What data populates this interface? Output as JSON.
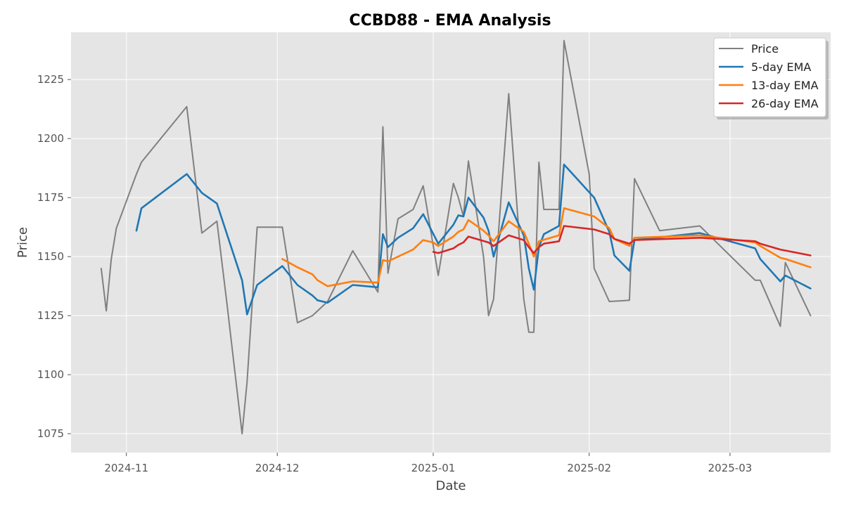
{
  "chart_data": {
    "type": "line",
    "title": "CCBD88 - EMA Analysis",
    "xlabel": "Date",
    "ylabel": "Price",
    "x_type": "date",
    "xlim": [
      "2024-10-21",
      "2025-03-21"
    ],
    "ylim": [
      1067,
      1245
    ],
    "x_ticks": [
      {
        "date": "2024-11-01",
        "label": "2024-11"
      },
      {
        "date": "2024-12-01",
        "label": "2024-12"
      },
      {
        "date": "2025-01-01",
        "label": "2025-01"
      },
      {
        "date": "2025-02-01",
        "label": "2025-02"
      },
      {
        "date": "2025-03-01",
        "label": "2025-03"
      }
    ],
    "y_ticks": [
      1075,
      1100,
      1125,
      1150,
      1175,
      1200,
      1225
    ],
    "grid": true,
    "legend_position": "top-right",
    "background": "#e5e5e5",
    "series": [
      {
        "name": "Price",
        "color": "#808080",
        "points": [
          [
            "2024-10-27",
            1145
          ],
          [
            "2024-10-28",
            1127
          ],
          [
            "2024-10-29",
            1149
          ],
          [
            "2024-10-30",
            1162
          ],
          [
            "2024-11-03",
            1185
          ],
          [
            "2024-11-04",
            1190
          ],
          [
            "2024-11-13",
            1213.5
          ],
          [
            "2024-11-16",
            1160
          ],
          [
            "2024-11-19",
            1165
          ],
          [
            "2024-11-21",
            1130
          ],
          [
            "2024-11-24",
            1075
          ],
          [
            "2024-11-25",
            1097
          ],
          [
            "2024-11-27",
            1162.5
          ],
          [
            "2024-12-02",
            1162.5
          ],
          [
            "2024-12-05",
            1122
          ],
          [
            "2024-12-08",
            1125
          ],
          [
            "2024-12-09",
            1127
          ],
          [
            "2024-12-11",
            1131
          ],
          [
            "2024-12-16",
            1152.5
          ],
          [
            "2024-12-21",
            1135
          ],
          [
            "2024-12-22",
            1205
          ],
          [
            "2024-12-23",
            1143
          ],
          [
            "2024-12-25",
            1166
          ],
          [
            "2024-12-28",
            1170
          ],
          [
            "2024-12-30",
            1180
          ],
          [
            "2025-01-02",
            1142
          ],
          [
            "2025-01-05",
            1181
          ],
          [
            "2025-01-06",
            1175
          ],
          [
            "2025-01-07",
            1167
          ],
          [
            "2025-01-08",
            1190.5
          ],
          [
            "2025-01-11",
            1150
          ],
          [
            "2025-01-12",
            1125
          ],
          [
            "2025-01-13",
            1132
          ],
          [
            "2025-01-16",
            1219
          ],
          [
            "2025-01-19",
            1132
          ],
          [
            "2025-01-20",
            1118
          ],
          [
            "2025-01-21",
            1118
          ],
          [
            "2025-01-22",
            1190
          ],
          [
            "2025-01-23",
            1170
          ],
          [
            "2025-01-26",
            1170
          ],
          [
            "2025-01-27",
            1241.5
          ],
          [
            "2025-02-01",
            1185
          ],
          [
            "2025-02-02",
            1145
          ],
          [
            "2025-02-05",
            1131
          ],
          [
            "2025-02-09",
            1131.5
          ],
          [
            "2025-02-10",
            1183
          ],
          [
            "2025-02-15",
            1161
          ],
          [
            "2025-02-23",
            1163
          ],
          [
            "2025-03-06",
            1140
          ],
          [
            "2025-03-07",
            1140
          ],
          [
            "2025-03-11",
            1120.5
          ],
          [
            "2025-03-12",
            1147.5
          ],
          [
            "2025-03-17",
            1125
          ]
        ]
      },
      {
        "name": "5-day EMA",
        "color": "#1f77b4",
        "points": [
          [
            "2024-11-03",
            1161
          ],
          [
            "2024-11-04",
            1170.5
          ],
          [
            "2024-11-13",
            1185
          ],
          [
            "2024-11-16",
            1177
          ],
          [
            "2024-11-19",
            1172.5
          ],
          [
            "2024-11-24",
            1140
          ],
          [
            "2024-11-25",
            1125.5
          ],
          [
            "2024-11-27",
            1138
          ],
          [
            "2024-12-02",
            1146
          ],
          [
            "2024-12-05",
            1138
          ],
          [
            "2024-12-08",
            1133.5
          ],
          [
            "2024-12-09",
            1131.5
          ],
          [
            "2024-12-11",
            1130.5
          ],
          [
            "2024-12-16",
            1138
          ],
          [
            "2024-12-21",
            1137
          ],
          [
            "2024-12-22",
            1159.5
          ],
          [
            "2024-12-23",
            1154
          ],
          [
            "2024-12-25",
            1158
          ],
          [
            "2024-12-28",
            1162
          ],
          [
            "2024-12-30",
            1168
          ],
          [
            "2025-01-02",
            1155.5
          ],
          [
            "2025-01-05",
            1163.5
          ],
          [
            "2025-01-06",
            1167.5
          ],
          [
            "2025-01-07",
            1167
          ],
          [
            "2025-01-08",
            1175
          ],
          [
            "2025-01-11",
            1166.5
          ],
          [
            "2025-01-12",
            1161
          ],
          [
            "2025-01-13",
            1150
          ],
          [
            "2025-01-16",
            1173
          ],
          [
            "2025-01-19",
            1159
          ],
          [
            "2025-01-20",
            1145
          ],
          [
            "2025-01-21",
            1136
          ],
          [
            "2025-01-22",
            1154
          ],
          [
            "2025-01-23",
            1159.5
          ],
          [
            "2025-01-26",
            1163
          ],
          [
            "2025-01-27",
            1189
          ],
          [
            "2025-02-02",
            1175
          ],
          [
            "2025-02-05",
            1160.5
          ],
          [
            "2025-02-06",
            1150.5
          ],
          [
            "2025-02-09",
            1144
          ],
          [
            "2025-02-10",
            1157
          ],
          [
            "2025-02-23",
            1160
          ],
          [
            "2025-03-06",
            1153.5
          ],
          [
            "2025-03-07",
            1149
          ],
          [
            "2025-03-11",
            1139.5
          ],
          [
            "2025-03-12",
            1142
          ],
          [
            "2025-03-17",
            1136.5
          ]
        ]
      },
      {
        "name": "13-day EMA",
        "color": "#ff7f0e",
        "points": [
          [
            "2024-12-02",
            1149
          ],
          [
            "2024-12-05",
            1145.5
          ],
          [
            "2024-12-08",
            1142.5
          ],
          [
            "2024-12-09",
            1140
          ],
          [
            "2024-12-11",
            1137.5
          ],
          [
            "2024-12-16",
            1139.5
          ],
          [
            "2024-12-21",
            1139
          ],
          [
            "2024-12-22",
            1148.5
          ],
          [
            "2024-12-23",
            1148
          ],
          [
            "2024-12-25",
            1150
          ],
          [
            "2024-12-28",
            1153
          ],
          [
            "2024-12-30",
            1157
          ],
          [
            "2025-01-01",
            1156
          ],
          [
            "2025-01-02",
            1154.5
          ],
          [
            "2025-01-05",
            1158.5
          ],
          [
            "2025-01-06",
            1160.5
          ],
          [
            "2025-01-07",
            1161.5
          ],
          [
            "2025-01-08",
            1165.5
          ],
          [
            "2025-01-11",
            1161
          ],
          [
            "2025-01-12",
            1159
          ],
          [
            "2025-01-13",
            1156.5
          ],
          [
            "2025-01-16",
            1165
          ],
          [
            "2025-01-19",
            1160.5
          ],
          [
            "2025-01-20",
            1155.5
          ],
          [
            "2025-01-21",
            1150
          ],
          [
            "2025-01-22",
            1156.5
          ],
          [
            "2025-01-26",
            1159
          ],
          [
            "2025-01-27",
            1170.5
          ],
          [
            "2025-02-02",
            1167
          ],
          [
            "2025-02-05",
            1162
          ],
          [
            "2025-02-06",
            1157.5
          ],
          [
            "2025-02-09",
            1154.5
          ],
          [
            "2025-02-10",
            1158
          ],
          [
            "2025-02-23",
            1159
          ],
          [
            "2025-03-06",
            1156
          ],
          [
            "2025-03-07",
            1154.5
          ],
          [
            "2025-03-11",
            1149.5
          ],
          [
            "2025-03-12",
            1149
          ],
          [
            "2025-03-17",
            1145.5
          ]
        ]
      },
      {
        "name": "26-day EMA",
        "color": "#d62728",
        "points": [
          [
            "2025-01-01",
            1152
          ],
          [
            "2025-01-02",
            1151.5
          ],
          [
            "2025-01-05",
            1153.5
          ],
          [
            "2025-01-06",
            1155
          ],
          [
            "2025-01-07",
            1156
          ],
          [
            "2025-01-08",
            1158.5
          ],
          [
            "2025-01-12",
            1156
          ],
          [
            "2025-01-13",
            1154.5
          ],
          [
            "2025-01-16",
            1159
          ],
          [
            "2025-01-19",
            1157
          ],
          [
            "2025-01-20",
            1154
          ],
          [
            "2025-01-21",
            1151.5
          ],
          [
            "2025-01-22",
            1154
          ],
          [
            "2025-01-23",
            1155.5
          ],
          [
            "2025-01-26",
            1156.5
          ],
          [
            "2025-01-27",
            1163
          ],
          [
            "2025-02-02",
            1161.5
          ],
          [
            "2025-02-05",
            1159.5
          ],
          [
            "2025-02-06",
            1157.5
          ],
          [
            "2025-02-09",
            1155.5
          ],
          [
            "2025-02-10",
            1157
          ],
          [
            "2025-02-23",
            1158
          ],
          [
            "2025-03-06",
            1156.5
          ],
          [
            "2025-03-07",
            1155.5
          ],
          [
            "2025-03-11",
            1153
          ],
          [
            "2025-03-17",
            1150.5
          ]
        ]
      }
    ]
  }
}
